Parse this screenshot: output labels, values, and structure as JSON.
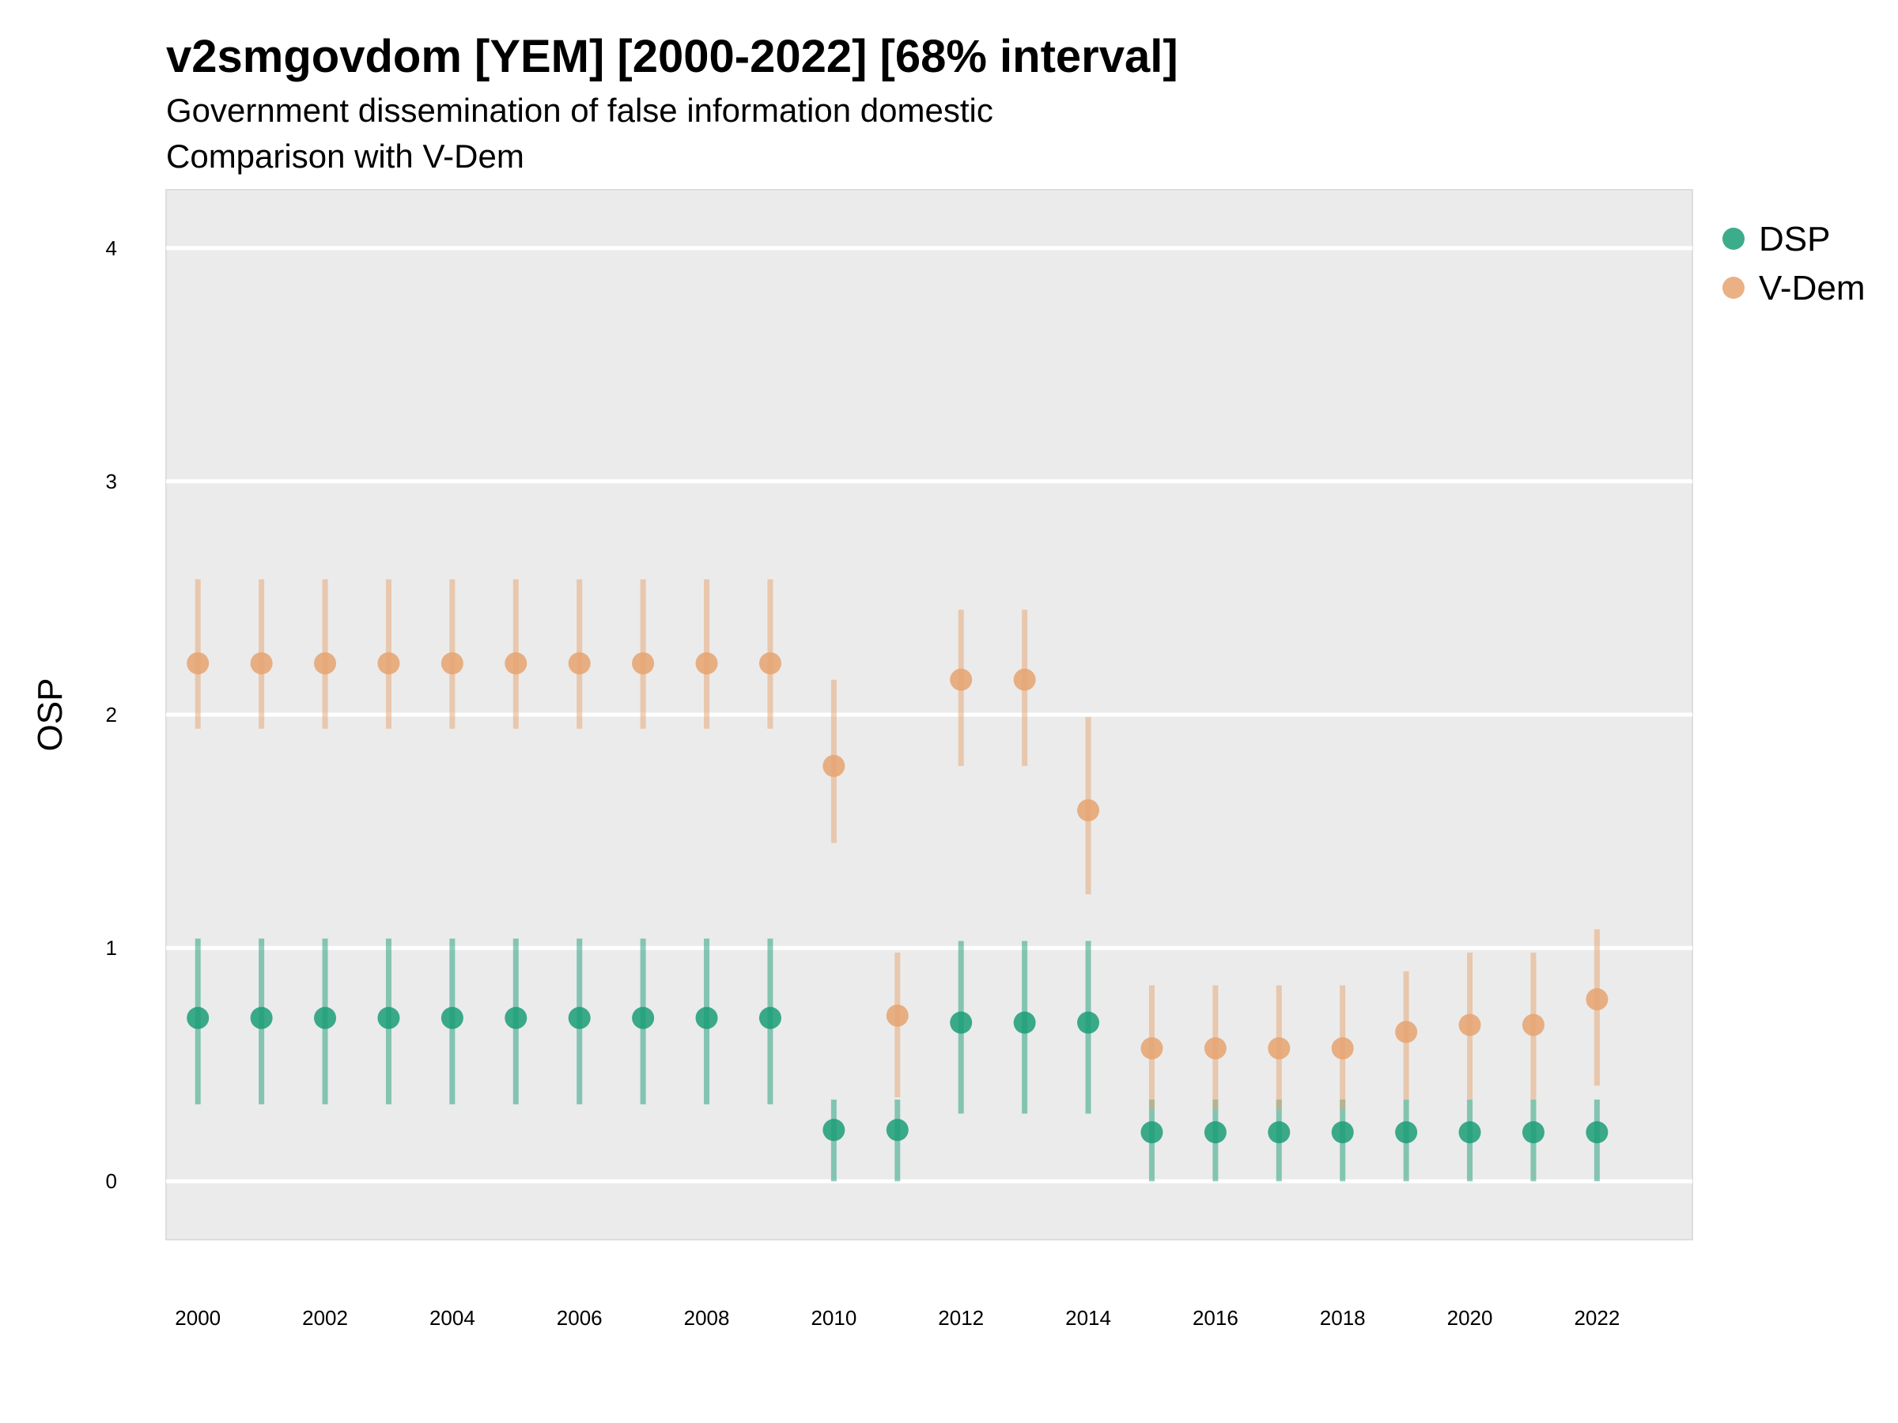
{
  "chart_data": {
    "type": "scatter",
    "title": "v2smgovdom [YEM] [2000-2022] [68% interval]",
    "subtitle": "Government dissemination of false information domestic",
    "caption": "Comparison with V-Dem",
    "xlabel": "",
    "ylabel": "OSP",
    "xlim": [
      1999.5,
      2023.5
    ],
    "ylim": [
      -0.25,
      4.25
    ],
    "x_ticks": [
      2000,
      2002,
      2004,
      2006,
      2008,
      2010,
      2012,
      2014,
      2016,
      2018,
      2020,
      2022
    ],
    "y_ticks": [
      0,
      1,
      2,
      3,
      4
    ],
    "grid": true,
    "legend_position": "right",
    "series": [
      {
        "name": "DSP",
        "color": "#1b9e77",
        "points": [
          {
            "x": 2000,
            "y": 0.7,
            "lo": 0.33,
            "hi": 1.04
          },
          {
            "x": 2001,
            "y": 0.7,
            "lo": 0.33,
            "hi": 1.04
          },
          {
            "x": 2002,
            "y": 0.7,
            "lo": 0.33,
            "hi": 1.04
          },
          {
            "x": 2003,
            "y": 0.7,
            "lo": 0.33,
            "hi": 1.04
          },
          {
            "x": 2004,
            "y": 0.7,
            "lo": 0.33,
            "hi": 1.04
          },
          {
            "x": 2005,
            "y": 0.7,
            "lo": 0.33,
            "hi": 1.04
          },
          {
            "x": 2006,
            "y": 0.7,
            "lo": 0.33,
            "hi": 1.04
          },
          {
            "x": 2007,
            "y": 0.7,
            "lo": 0.33,
            "hi": 1.04
          },
          {
            "x": 2008,
            "y": 0.7,
            "lo": 0.33,
            "hi": 1.04
          },
          {
            "x": 2009,
            "y": 0.7,
            "lo": 0.33,
            "hi": 1.04
          },
          {
            "x": 2010,
            "y": 0.22,
            "lo": 0.0,
            "hi": 0.35
          },
          {
            "x": 2011,
            "y": 0.22,
            "lo": 0.0,
            "hi": 0.35
          },
          {
            "x": 2012,
            "y": 0.68,
            "lo": 0.29,
            "hi": 1.03
          },
          {
            "x": 2013,
            "y": 0.68,
            "lo": 0.29,
            "hi": 1.03
          },
          {
            "x": 2014,
            "y": 0.68,
            "lo": 0.29,
            "hi": 1.03
          },
          {
            "x": 2015,
            "y": 0.21,
            "lo": 0.0,
            "hi": 0.35
          },
          {
            "x": 2016,
            "y": 0.21,
            "lo": 0.0,
            "hi": 0.35
          },
          {
            "x": 2017,
            "y": 0.21,
            "lo": 0.0,
            "hi": 0.35
          },
          {
            "x": 2018,
            "y": 0.21,
            "lo": 0.0,
            "hi": 0.35
          },
          {
            "x": 2019,
            "y": 0.21,
            "lo": 0.0,
            "hi": 0.35
          },
          {
            "x": 2020,
            "y": 0.21,
            "lo": 0.0,
            "hi": 0.35
          },
          {
            "x": 2021,
            "y": 0.21,
            "lo": 0.0,
            "hi": 0.35
          },
          {
            "x": 2022,
            "y": 0.21,
            "lo": 0.0,
            "hi": 0.35
          }
        ]
      },
      {
        "name": "V-Dem",
        "color": "#e6a370",
        "points": [
          {
            "x": 2000,
            "y": 2.22,
            "lo": 1.94,
            "hi": 2.58
          },
          {
            "x": 2001,
            "y": 2.22,
            "lo": 1.94,
            "hi": 2.58
          },
          {
            "x": 2002,
            "y": 2.22,
            "lo": 1.94,
            "hi": 2.58
          },
          {
            "x": 2003,
            "y": 2.22,
            "lo": 1.94,
            "hi": 2.58
          },
          {
            "x": 2004,
            "y": 2.22,
            "lo": 1.94,
            "hi": 2.58
          },
          {
            "x": 2005,
            "y": 2.22,
            "lo": 1.94,
            "hi": 2.58
          },
          {
            "x": 2006,
            "y": 2.22,
            "lo": 1.94,
            "hi": 2.58
          },
          {
            "x": 2007,
            "y": 2.22,
            "lo": 1.94,
            "hi": 2.58
          },
          {
            "x": 2008,
            "y": 2.22,
            "lo": 1.94,
            "hi": 2.58
          },
          {
            "x": 2009,
            "y": 2.22,
            "lo": 1.94,
            "hi": 2.58
          },
          {
            "x": 2010,
            "y": 1.78,
            "lo": 1.45,
            "hi": 2.15
          },
          {
            "x": 2011,
            "y": 0.71,
            "lo": 0.36,
            "hi": 0.98
          },
          {
            "x": 2012,
            "y": 2.15,
            "lo": 1.78,
            "hi": 2.45
          },
          {
            "x": 2013,
            "y": 2.15,
            "lo": 1.78,
            "hi": 2.45
          },
          {
            "x": 2014,
            "y": 1.59,
            "lo": 1.23,
            "hi": 1.99
          },
          {
            "x": 2015,
            "y": 0.57,
            "lo": 0.31,
            "hi": 0.84
          },
          {
            "x": 2016,
            "y": 0.57,
            "lo": 0.31,
            "hi": 0.84
          },
          {
            "x": 2017,
            "y": 0.57,
            "lo": 0.31,
            "hi": 0.84
          },
          {
            "x": 2018,
            "y": 0.57,
            "lo": 0.31,
            "hi": 0.84
          },
          {
            "x": 2019,
            "y": 0.64,
            "lo": 0.35,
            "hi": 0.9
          },
          {
            "x": 2020,
            "y": 0.67,
            "lo": 0.35,
            "hi": 0.98
          },
          {
            "x": 2021,
            "y": 0.67,
            "lo": 0.35,
            "hi": 0.98
          },
          {
            "x": 2022,
            "y": 0.78,
            "lo": 0.41,
            "hi": 1.08
          }
        ]
      }
    ]
  }
}
